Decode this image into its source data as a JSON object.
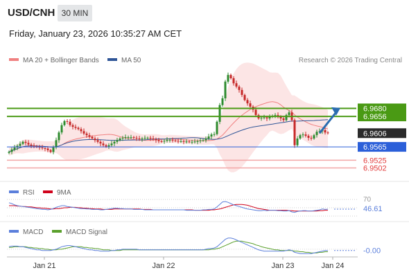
{
  "header": {
    "symbol": "USD/CNH",
    "timeframe": "30 MIN",
    "datetime": "Friday, January 23, 2026 10:35:27 AM CET"
  },
  "legend": {
    "ma20_bollinger": "MA 20 + Bollinger Bands",
    "ma50": "MA 50",
    "copyright": "Research © 2026 Trading Central",
    "rsi": "RSI",
    "rsi_ma": "9MA",
    "macd": "MACD",
    "macd_signal": "MACD Signal"
  },
  "colors": {
    "candle_up": "#2e8b2e",
    "candle_down": "#c62828",
    "ma20": "#f08080",
    "ma50": "#2f5597",
    "bollinger_fill": "#fbe0e0",
    "resistance": "#4a9a14",
    "support": "#f2a6a6",
    "pivot": "#2b5fd9",
    "arrow": "#2b6cb0",
    "rsi": "#5b7fdb",
    "rsi_ma": "#d0021b",
    "macd": "#5b7fdb",
    "macd_signal": "#5aa02c"
  },
  "chart_data": {
    "type": "candlestick",
    "x_axis": {
      "tick_labels": [
        "Jan 21",
        "Jan 22",
        "Jan 23",
        "Jan 24"
      ]
    },
    "price_axis": {
      "ylim": [
        6.947,
        6.983
      ]
    },
    "levels": [
      {
        "name": "resistance-2",
        "value": 6.968,
        "label": "6.9680",
        "style": "green"
      },
      {
        "name": "resistance-1",
        "value": 6.9656,
        "label": "6.9656",
        "style": "green"
      },
      {
        "name": "last-price",
        "value": 6.9606,
        "label": "6.9606",
        "style": "dark"
      },
      {
        "name": "pivot",
        "value": 6.9565,
        "label": "6.9565",
        "style": "blue"
      },
      {
        "name": "support-1",
        "value": 6.9525,
        "label": "6.9525",
        "style": "red"
      },
      {
        "name": "support-2",
        "value": 6.9502,
        "label": "6.9502",
        "style": "red"
      }
    ],
    "target_arrow": {
      "from_bar": 112,
      "from_value": 6.9606,
      "to_bar": 119,
      "to_value": 6.9675
    },
    "close": [
      6.955,
      6.9557,
      6.9563,
      6.9568,
      6.9574,
      6.958,
      6.9577,
      6.9572,
      6.9569,
      6.9567,
      6.9565,
      6.9563,
      6.9561,
      6.956,
      6.9555,
      6.955,
      6.9563,
      6.9585,
      6.9608,
      6.963,
      6.9642,
      6.964,
      6.963,
      6.9625,
      6.9622,
      6.9618,
      6.9612,
      6.9605,
      6.96,
      6.9595,
      6.959,
      6.9585,
      6.958,
      6.9575,
      6.957,
      6.9566,
      6.957,
      6.9575,
      6.958,
      6.9585,
      6.959,
      6.9592,
      6.9594,
      6.9594,
      6.9594,
      6.9592,
      6.959,
      6.9588,
      6.959,
      6.9592,
      6.9592,
      6.959,
      6.9588,
      6.9585,
      6.9582,
      6.9581,
      6.9583,
      6.9586,
      6.9586,
      6.9584,
      6.9583,
      6.9582,
      6.9582,
      6.9581,
      6.9581,
      6.958,
      6.958,
      6.9581,
      6.9582,
      6.9584,
      6.9585,
      6.959,
      6.9596,
      6.9602,
      6.9603,
      6.964,
      6.969,
      6.971,
      6.976,
      6.978,
      6.977,
      6.9755,
      6.9745,
      6.9735,
      6.972,
      6.9705,
      6.9695,
      6.9685,
      6.9676,
      6.966,
      6.965,
      6.9652,
      6.9653,
      6.965,
      6.9655,
      6.9658,
      6.966,
      6.9655,
      6.965,
      6.9645,
      6.966,
      6.9668,
      6.9645,
      6.957,
      6.959,
      6.96,
      6.9602,
      6.9598,
      6.9592,
      6.959,
      6.96,
      6.961,
      6.9612,
      6.9615,
      6.9608,
      6.9606
    ],
    "rsi": {
      "label_70": "70",
      "current": "46.61",
      "ylim": [
        20,
        80
      ],
      "values": [
        62,
        60,
        57,
        55,
        54,
        53,
        52,
        51,
        50,
        49,
        48,
        47,
        46,
        46,
        45,
        46,
        48,
        51,
        53,
        55,
        55,
        53,
        52,
        51,
        50,
        49,
        48,
        48,
        47,
        47,
        46,
        46,
        46,
        45,
        45,
        46,
        47,
        48,
        49,
        49,
        48,
        48,
        47,
        47,
        47,
        46,
        46,
        46,
        46,
        45,
        45,
        45,
        45,
        45,
        45,
        45,
        45,
        45,
        45,
        45,
        45,
        45,
        45,
        45,
        44,
        44,
        44,
        44,
        44,
        44,
        45,
        45,
        46,
        46,
        47,
        52,
        58,
        64,
        65,
        63,
        60,
        57,
        55,
        53,
        51,
        49,
        47,
        46,
        45,
        44,
        43,
        43,
        44,
        43,
        44,
        44,
        44,
        43,
        43,
        42,
        42,
        43,
        40,
        39,
        41,
        42,
        43,
        43,
        42,
        42,
        43,
        44,
        45,
        47,
        46,
        46.61
      ],
      "ma": [
        55,
        55,
        55,
        54,
        54,
        53,
        53,
        52,
        52,
        51,
        50,
        50,
        49,
        49,
        48,
        47,
        47,
        48,
        48,
        49,
        50,
        50,
        51,
        51,
        51,
        50,
        50,
        49,
        49,
        48,
        48,
        47,
        47,
        47,
        46,
        46,
        46,
        46,
        47,
        47,
        47,
        47,
        47,
        47,
        47,
        47,
        47,
        47,
        46,
        46,
        46,
        46,
        45,
        45,
        45,
        45,
        45,
        45,
        45,
        45,
        45,
        45,
        45,
        45,
        45,
        45,
        45,
        44,
        44,
        44,
        44,
        44,
        44,
        45,
        45,
        46,
        47,
        49,
        51,
        53,
        55,
        57,
        58,
        58,
        58,
        57,
        56,
        54,
        52,
        50,
        48,
        47,
        46,
        45,
        44,
        44,
        44,
        44,
        44,
        44,
        44,
        43,
        43,
        42,
        42,
        42,
        42,
        42,
        42,
        42,
        42,
        42,
        43,
        43,
        44,
        44
      ]
    },
    "macd": {
      "label": "-0.00",
      "values": [
        0.0004,
        0.0005,
        0.0005,
        0.0005,
        0.0004,
        0.0004,
        0.0003,
        0.0002,
        0.0001,
        0.0,
        -0.0001,
        -0.0001,
        -0.0002,
        -0.0002,
        -0.0002,
        -0.0002,
        -0.0001,
        0.0,
        0.0002,
        0.0004,
        0.0005,
        0.0006,
        0.0006,
        0.0005,
        0.0004,
        0.0003,
        0.0002,
        0.0001,
        0.0,
        -0.0001,
        -0.0001,
        -0.0002,
        -0.0002,
        -0.0003,
        -0.0003,
        -0.0003,
        -0.0003,
        -0.0002,
        -0.0002,
        -0.0001,
        -0.0001,
        0.0,
        0.0,
        0.0,
        0.0,
        0.0,
        0.0,
        -0.0001,
        -0.0001,
        -0.0001,
        -0.0001,
        -0.0001,
        -0.0001,
        -0.0001,
        -0.0001,
        -0.0001,
        -0.0001,
        -0.0001,
        -0.0001,
        -0.0001,
        -0.0001,
        -0.0001,
        -0.0001,
        -0.0001,
        -0.0001,
        -0.0001,
        -0.0001,
        -0.0001,
        -0.0001,
        -0.0001,
        -0.0001,
        0.0,
        0.0001,
        0.0001,
        0.0002,
        0.0004,
        0.0008,
        0.0012,
        0.0016,
        0.0018,
        0.0018,
        0.0017,
        0.0015,
        0.0013,
        0.0011,
        0.0009,
        0.0007,
        0.0005,
        0.0003,
        0.0001,
        -0.0001,
        -0.0002,
        -0.0003,
        -0.0003,
        -0.0003,
        -0.0003,
        -0.0003,
        -0.0003,
        -0.0003,
        -0.0003,
        -0.0002,
        -0.0001,
        -0.0002,
        -0.0005,
        -0.0006,
        -0.0007,
        -0.0007,
        -0.0007,
        -0.0007,
        -0.0007,
        -0.0006,
        -0.0005,
        -0.0004,
        -0.0003,
        -0.0002,
        -0.0002
      ],
      "signal": [
        0.0003,
        0.0003,
        0.0004,
        0.0004,
        0.0004,
        0.0004,
        0.0004,
        0.0003,
        0.0003,
        0.0002,
        0.0002,
        0.0001,
        0.0001,
        0.0,
        0.0,
        -0.0001,
        -0.0001,
        -0.0001,
        0.0,
        0.0,
        0.0001,
        0.0002,
        0.0003,
        0.0004,
        0.0004,
        0.0004,
        0.0004,
        0.0003,
        0.0003,
        0.0002,
        0.0002,
        0.0001,
        0.0001,
        0.0,
        -0.0001,
        -0.0001,
        -0.0001,
        -0.0002,
        -0.0002,
        -0.0002,
        -0.0002,
        -0.0001,
        -0.0001,
        -0.0001,
        -0.0001,
        -0.0001,
        -0.0001,
        -0.0001,
        -0.0001,
        -0.0001,
        -0.0001,
        -0.0001,
        -0.0001,
        -0.0001,
        -0.0001,
        -0.0001,
        -0.0001,
        -0.0001,
        -0.0001,
        -0.0001,
        -0.0001,
        -0.0001,
        -0.0001,
        -0.0001,
        -0.0001,
        -0.0001,
        -0.0001,
        -0.0001,
        -0.0001,
        -0.0001,
        -0.0001,
        -0.0001,
        -0.0001,
        0.0,
        0.0,
        0.0001,
        0.0002,
        0.0004,
        0.0006,
        0.0008,
        0.001,
        0.0012,
        0.0013,
        0.0013,
        0.0013,
        0.0012,
        0.0011,
        0.001,
        0.0009,
        0.0007,
        0.0006,
        0.0004,
        0.0003,
        0.0002,
        0.0001,
        0.0,
        -0.0001,
        -0.0001,
        -0.0002,
        -0.0002,
        -0.0002,
        -0.0002,
        -0.0002,
        -0.0003,
        -0.0003,
        -0.0004,
        -0.0004,
        -0.0005,
        -0.0005,
        -0.0006,
        -0.0006,
        -0.0006,
        -0.0005,
        -0.0005,
        -0.0004,
        -0.0004
      ]
    }
  }
}
